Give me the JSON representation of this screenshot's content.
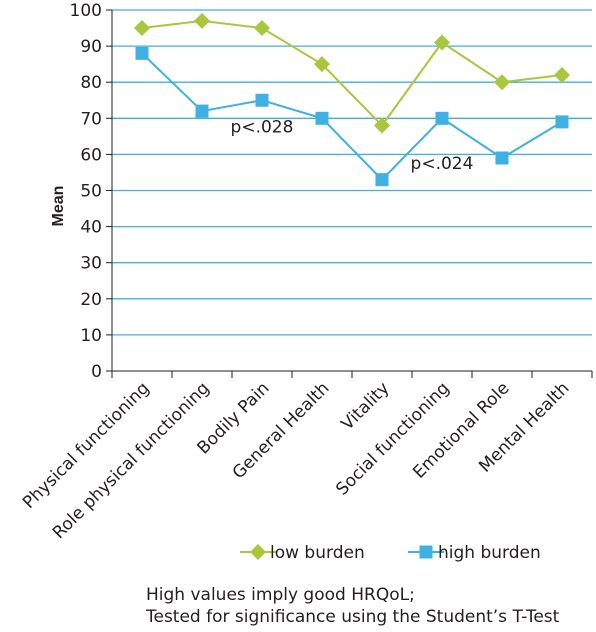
{
  "chart_data": {
    "type": "line",
    "categories": [
      "Physical functioning",
      "Role physical functioning",
      "Bodily Pain",
      "General Health",
      "Vitality",
      "Social functioning",
      "Emotional Role",
      "Mental Health"
    ],
    "series": [
      {
        "name": "low burden",
        "values": [
          95,
          97,
          95,
          85,
          68,
          91,
          80,
          82
        ],
        "color": "#a9c73d",
        "marker": "diamond"
      },
      {
        "name": "high burden",
        "values": [
          88,
          72,
          75,
          70,
          53,
          70,
          59,
          69
        ],
        "color": "#3fb0e3",
        "marker": "square"
      }
    ],
    "ylabel": "Mean",
    "ylim": [
      0,
      100
    ],
    "yticks": [
      0,
      10,
      20,
      30,
      40,
      50,
      60,
      70,
      80,
      90,
      100
    ],
    "grid": true,
    "legend": "bottom",
    "annotations": [
      {
        "text": "p<.028",
        "category": "Bodily Pain",
        "y": 66
      },
      {
        "text": "p<.024",
        "category": "Social functioning",
        "y": 56
      }
    ],
    "gridline_color": "#41b0e0"
  },
  "footnote": {
    "line1": "High values imply good HRQoL;",
    "line2": "Tested for significance using the Student’s T-Test"
  }
}
